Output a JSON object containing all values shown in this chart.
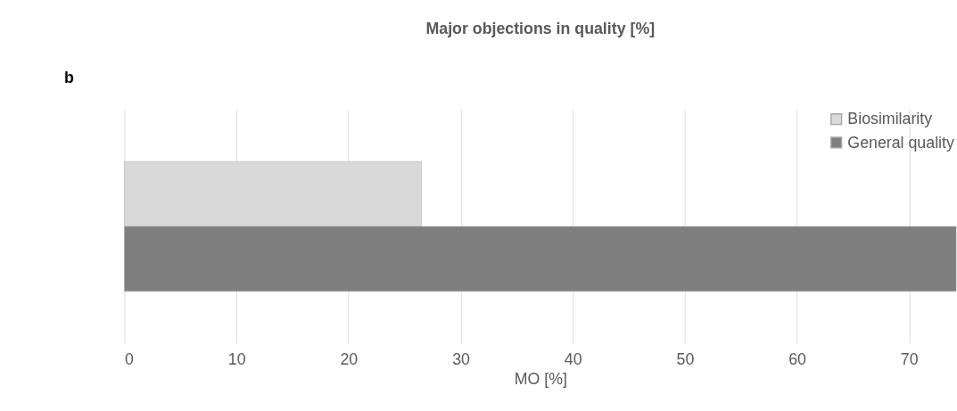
{
  "chart_data": {
    "type": "bar",
    "orientation": "horizontal",
    "title": "Major objections in quality [%]",
    "xlabel": "MO [%]",
    "annotations": [
      "b"
    ],
    "categories": [
      null
    ],
    "series": [
      {
        "name": "Biosimilarity",
        "color": "#d9d9d9",
        "values": [
          26.5
        ]
      },
      {
        "name": "General quality",
        "color": "#7f7f7f",
        "values": [
          74.2
        ]
      }
    ],
    "xlim": [
      0,
      74.2
    ],
    "xticks": [
      0,
      10,
      20,
      30,
      40,
      50,
      60,
      70
    ],
    "grid": "x",
    "legend": "top right"
  }
}
